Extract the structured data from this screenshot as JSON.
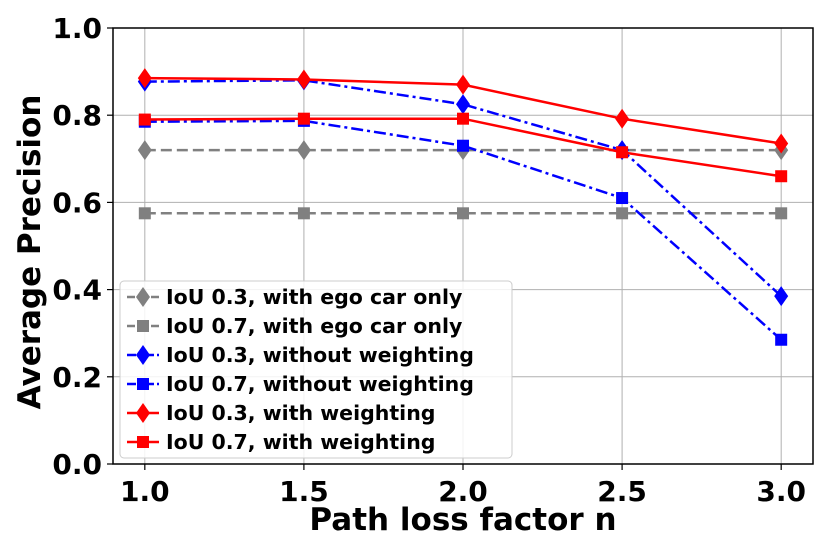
{
  "chart_data": {
    "type": "line",
    "title": "",
    "xlabel": "Path loss factor n",
    "ylabel": "Average Precision",
    "x": [
      1.0,
      1.5,
      2.0,
      2.5,
      3.0
    ],
    "xlim": [
      0.9,
      3.1
    ],
    "ylim": [
      0.0,
      1.0
    ],
    "x_ticks": [
      "1.0",
      "1.5",
      "2.0",
      "2.5",
      "3.0"
    ],
    "y_ticks": [
      "0.0",
      "0.2",
      "0.4",
      "0.6",
      "0.8",
      "1.0"
    ],
    "grid": true,
    "legend_position": "bottom-left",
    "series": [
      {
        "name": "IoU 0.3, with ego car only",
        "values": [
          0.72,
          0.72,
          0.72,
          0.72,
          0.72
        ],
        "color": "#808080",
        "line_style": "dashed",
        "marker": "diamond"
      },
      {
        "name": "IoU 0.7, with ego car only",
        "values": [
          0.575,
          0.575,
          0.575,
          0.575,
          0.575
        ],
        "color": "#808080",
        "line_style": "dashed",
        "marker": "square"
      },
      {
        "name": "IoU 0.3, without weighting",
        "values": [
          0.877,
          0.88,
          0.825,
          0.72,
          0.385
        ],
        "color": "#0000ff",
        "line_style": "dashdot",
        "marker": "diamond"
      },
      {
        "name": "IoU 0.7, without weighting",
        "values": [
          0.785,
          0.787,
          0.73,
          0.61,
          0.285
        ],
        "color": "#0000ff",
        "line_style": "dashdot",
        "marker": "square"
      },
      {
        "name": "IoU 0.3, with weighting",
        "values": [
          0.885,
          0.882,
          0.87,
          0.792,
          0.735
        ],
        "color": "#ff0000",
        "line_style": "solid",
        "marker": "diamond"
      },
      {
        "name": "IoU 0.7, with weighting",
        "values": [
          0.79,
          0.792,
          0.792,
          0.715,
          0.66
        ],
        "color": "#ff0000",
        "line_style": "solid",
        "marker": "square"
      }
    ]
  }
}
